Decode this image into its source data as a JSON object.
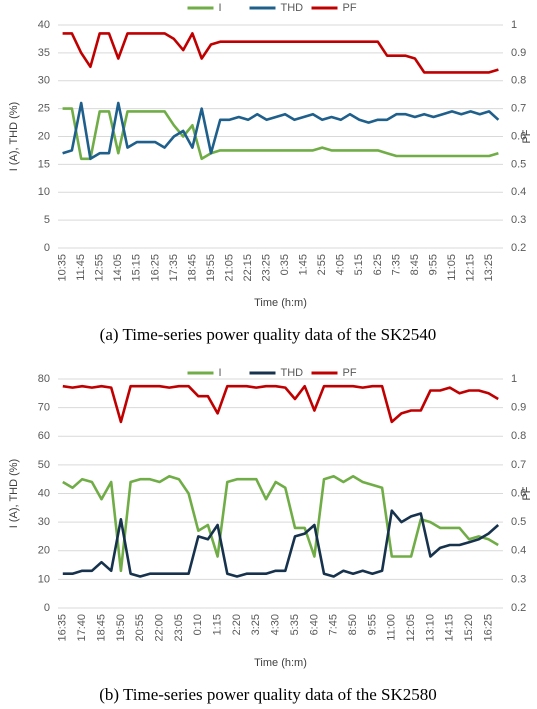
{
  "chart_data": [
    {
      "type": "line",
      "caption": "(a) Time-series power quality data of the SK2540",
      "x_label": "Time (h:m)",
      "y_label": "I (A), THD (%)",
      "y2_label": "PF",
      "categories": [
        "10:35",
        null,
        "11:45",
        null,
        "12:55",
        null,
        "14:05",
        null,
        "15:15",
        null,
        "16:25",
        null,
        "17:35",
        null,
        "18:45",
        null,
        "19:55",
        null,
        "21:05",
        null,
        "22:15",
        null,
        "23:25",
        null,
        "0:35",
        null,
        "1:45",
        null,
        "2:55",
        null,
        "4:05",
        null,
        "5:15",
        null,
        "6:25",
        null,
        "7:35",
        null,
        "8:45",
        null,
        "9:55",
        null,
        "11:05",
        null,
        "12:15",
        null,
        "13:25",
        null
      ],
      "ylim": [
        0,
        40
      ],
      "yticks": [
        0,
        5,
        10,
        15,
        20,
        25,
        30,
        35,
        40
      ],
      "y2lim": [
        0.2,
        1
      ],
      "y2ticks": [
        0.2,
        0.3,
        0.4,
        0.5,
        0.6,
        0.7,
        0.8,
        0.9,
        1
      ],
      "grid": true,
      "legend": "top",
      "series": [
        {
          "name": "I",
          "color": "#70ad47",
          "values": [
            25,
            25,
            16,
            16,
            24.5,
            24.5,
            17,
            24.5,
            24.5,
            24.5,
            24.5,
            24.5,
            22,
            20,
            22,
            16,
            17,
            17.5,
            17.5,
            17.5,
            17.5,
            17.5,
            17.5,
            17.5,
            17.5,
            17.5,
            17.5,
            17.5,
            18,
            17.5,
            17.5,
            17.5,
            17.5,
            17.5,
            17.5,
            17,
            16.5,
            16.5,
            16.5,
            16.5,
            16.5,
            16.5,
            16.5,
            16.5,
            16.5,
            16.5,
            16.5,
            17
          ]
        },
        {
          "name": "THD",
          "color": "#1f5f8b",
          "values": [
            17,
            17.5,
            26,
            16,
            17,
            17,
            26,
            18,
            19,
            19,
            19,
            18,
            20,
            21,
            18,
            25,
            17,
            23,
            23,
            23.5,
            23,
            24,
            23,
            23.5,
            24,
            23,
            23.5,
            24,
            23,
            23.5,
            23,
            24,
            23,
            22.5,
            23,
            23,
            24,
            24,
            23.5,
            24,
            23.5,
            24,
            24.5,
            24,
            24.5,
            24,
            24.5,
            23
          ]
        },
        {
          "name": "PF",
          "color": "#c00000",
          "axis": "y2",
          "values": [
            0.97,
            0.97,
            0.9,
            0.85,
            0.97,
            0.97,
            0.88,
            0.97,
            0.97,
            0.97,
            0.97,
            0.97,
            0.95,
            0.91,
            0.97,
            0.88,
            0.93,
            0.94,
            0.94,
            0.94,
            0.94,
            0.94,
            0.94,
            0.94,
            0.94,
            0.94,
            0.94,
            0.94,
            0.94,
            0.94,
            0.94,
            0.94,
            0.94,
            0.94,
            0.94,
            0.89,
            0.89,
            0.89,
            0.88,
            0.83,
            0.83,
            0.83,
            0.83,
            0.83,
            0.83,
            0.83,
            0.83,
            0.84
          ]
        }
      ]
    },
    {
      "type": "line",
      "caption": "(b) Time-series power quality data of the SK2580",
      "x_label": "Time (h:m)",
      "y_label": "I (A), THD (%)",
      "y2_label": "PF",
      "categories": [
        "16:35",
        null,
        "17:40",
        null,
        "18:45",
        null,
        "19:50",
        null,
        "20:55",
        null,
        "22:00",
        null,
        "23:05",
        null,
        "0:10",
        null,
        "1:15",
        null,
        "2:20",
        null,
        "3:25",
        null,
        "4:30",
        null,
        "5:35",
        null,
        "6:40",
        null,
        "7:45",
        null,
        "8:50",
        null,
        "9:55",
        null,
        "11:00",
        null,
        "12:05",
        null,
        "13:10",
        null,
        "14:15",
        null,
        "15:20",
        null,
        "16:25",
        null
      ],
      "ylim": [
        0,
        80
      ],
      "yticks": [
        0,
        10,
        20,
        30,
        40,
        50,
        60,
        70,
        80
      ],
      "y2lim": [
        0.2,
        1
      ],
      "y2ticks": [
        0.2,
        0.3,
        0.4,
        0.5,
        0.6,
        0.7,
        0.8,
        0.9,
        1
      ],
      "grid": true,
      "legend": "top",
      "series": [
        {
          "name": "I",
          "color": "#70ad47",
          "values": [
            44,
            42,
            45,
            44,
            38,
            44,
            13,
            44,
            45,
            45,
            44,
            46,
            45,
            40,
            27,
            29,
            18,
            44,
            45,
            45,
            45,
            38,
            44,
            42,
            28,
            28,
            18,
            45,
            46,
            44,
            46,
            44,
            43,
            42,
            18,
            18,
            18,
            31,
            30,
            28,
            28,
            28,
            24,
            25,
            24,
            22
          ]
        },
        {
          "name": "THD",
          "color": "#17324d",
          "values": [
            12,
            12,
            13,
            13,
            16,
            13,
            31,
            12,
            11,
            12,
            12,
            12,
            12,
            12,
            25,
            24,
            29,
            12,
            11,
            12,
            12,
            12,
            13,
            13,
            25,
            26,
            29,
            12,
            11,
            13,
            12,
            13,
            12,
            13,
            34,
            30,
            32,
            33,
            18,
            21,
            22,
            22,
            23,
            24,
            26,
            29
          ]
        },
        {
          "name": "PF",
          "color": "#c00000",
          "axis": "y2",
          "values": [
            0.975,
            0.97,
            0.975,
            0.97,
            0.975,
            0.97,
            0.85,
            0.975,
            0.975,
            0.975,
            0.975,
            0.97,
            0.975,
            0.975,
            0.94,
            0.94,
            0.88,
            0.975,
            0.975,
            0.975,
            0.97,
            0.975,
            0.975,
            0.97,
            0.93,
            0.975,
            0.89,
            0.975,
            0.975,
            0.975,
            0.975,
            0.97,
            0.975,
            0.975,
            0.85,
            0.88,
            0.89,
            0.89,
            0.96,
            0.96,
            0.97,
            0.95,
            0.96,
            0.96,
            0.95,
            0.93
          ]
        }
      ]
    }
  ]
}
